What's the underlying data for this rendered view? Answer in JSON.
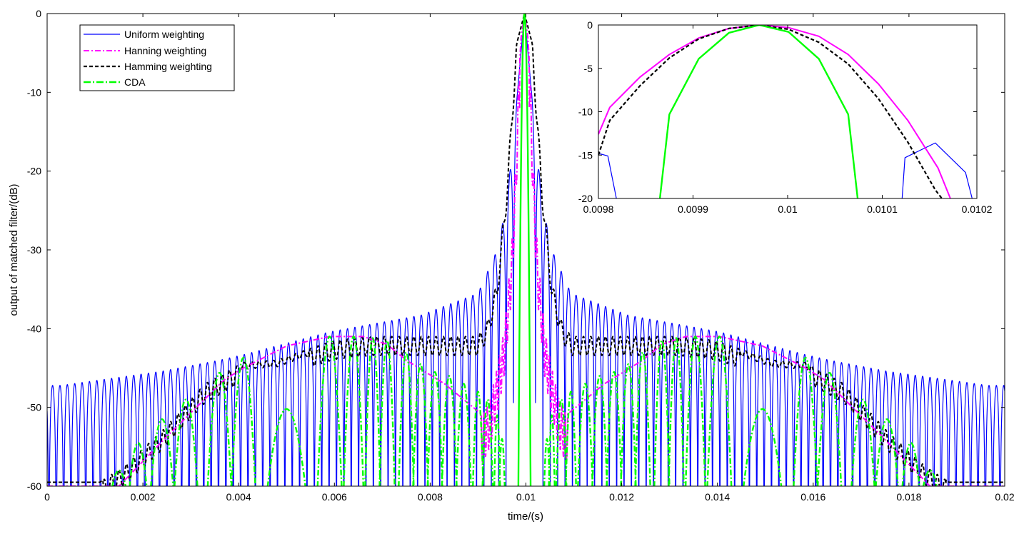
{
  "chart_data": [
    {
      "type": "line",
      "title": "",
      "xlabel": "time/(s)",
      "ylabel": "output of matched filter/(dB)",
      "xlim": [
        0,
        0.02
      ],
      "ylim": [
        -60,
        0
      ],
      "x_ticks": [
        0,
        0.002,
        0.004,
        0.006,
        0.008,
        0.01,
        0.012,
        0.014,
        0.016,
        0.018,
        0.02
      ],
      "x_tick_labels": [
        "0",
        "0.002",
        "0.004",
        "0.006",
        "0.008",
        "0.01",
        "0.012",
        "0.014",
        "0.016",
        "0.018",
        "0.02"
      ],
      "y_ticks": [
        -60,
        -50,
        -40,
        -30,
        -20,
        -10,
        0
      ],
      "y_tick_labels": [
        "-60",
        "-50",
        "-40",
        "-30",
        "-20",
        "-10",
        "0"
      ],
      "grid": false,
      "legend_position": "top-left",
      "center_s": 0.00997,
      "series": [
        {
          "name": "Uniform weighting",
          "color": "#0000ff",
          "style": "solid",
          "model": "sinc_sidelobe_envelope",
          "envelope_dB": [
            [
              0.0003,
              -47.2
            ],
            [
              0.0024,
              -45.4
            ],
            [
              0.0036,
              -44.0
            ],
            [
              0.0041,
              -43.3
            ],
            [
              0.0059,
              -40.4
            ],
            [
              0.0078,
              -38.3
            ],
            [
              0.009,
              -35.5
            ],
            [
              0.0094,
              -30.0
            ],
            [
              0.0096,
              -24.0
            ],
            [
              0.00975,
              -15.0
            ],
            [
              0.00997,
              0
            ]
          ],
          "sidelobe_spacing_s": 0.000154,
          "null_floor_dB": -60
        },
        {
          "name": "Hanning  weighting",
          "color": "#ff00ff",
          "style": "dash-dot",
          "points": [
            [
              0.0015,
              -60
            ],
            [
              0.0025,
              -53.7
            ],
            [
              0.0037,
              -46.5
            ],
            [
              0.0041,
              -45.0
            ],
            [
              0.005,
              -42.2
            ],
            [
              0.0059,
              -41.0
            ],
            [
              0.0066,
              -41.0
            ],
            [
              0.0071,
              -42.0
            ],
            [
              0.0075,
              -44.0
            ],
            [
              0.0083,
              -47.0
            ],
            [
              0.0087,
              -49.0
            ],
            [
              0.0091,
              -51.0
            ],
            [
              0.00925,
              -49.0
            ],
            [
              0.0094,
              -45.0
            ],
            [
              0.00955,
              -40.0
            ],
            [
              0.0097,
              -30.0
            ],
            [
              0.00978,
              -20.0
            ],
            [
              0.00985,
              -8.0
            ],
            [
              0.0099,
              -3.0
            ],
            [
              0.00997,
              0
            ]
          ],
          "center_ripple_dB": 6,
          "ripple_spacing_s": 6.5e-05
        },
        {
          "name": "Hamming  weighting",
          "color": "#000000",
          "style": "dashed",
          "points": [
            [
              0.0011,
              -59.5
            ],
            [
              0.0016,
              -57.5
            ],
            [
              0.0024,
              -53.0
            ],
            [
              0.0033,
              -47.0
            ],
            [
              0.0041,
              -44.3
            ],
            [
              0.0048,
              -44.0
            ],
            [
              0.0055,
              -42.5
            ],
            [
              0.006,
              -41.5
            ],
            [
              0.0068,
              -41.0
            ],
            [
              0.0076,
              -41.0
            ],
            [
              0.0083,
              -41.0
            ],
            [
              0.0088,
              -41.0
            ],
            [
              0.009,
              -41.0
            ],
            [
              0.0092,
              -39.0
            ],
            [
              0.0094,
              -34.0
            ],
            [
              0.0096,
              -22.0
            ],
            [
              0.0098,
              -4.0
            ],
            [
              0.00997,
              0
            ]
          ],
          "ripple_dB": 4,
          "ripple_spacing_s": 0.000154
        },
        {
          "name": "CDA",
          "color": "#00ff00",
          "style": "dash-dot",
          "model": "lobe_peaks",
          "lobe_peaks": [
            [
              0.0015,
              -58.0
            ],
            [
              0.0019,
              -54.5
            ],
            [
              0.0024,
              -51.5
            ],
            [
              0.0029,
              -49.0
            ],
            [
              0.0036,
              -45.6
            ],
            [
              0.0041,
              -43.7
            ],
            [
              0.005,
              -50.2
            ],
            [
              0.0059,
              -41.0
            ],
            [
              0.0064,
              -41.0
            ],
            [
              0.0068,
              -41.2
            ],
            [
              0.0071,
              -41.5
            ],
            [
              0.0075,
              -43.0
            ],
            [
              0.0078,
              -44.5
            ],
            [
              0.0081,
              -45.5
            ],
            [
              0.0084,
              -46.0
            ],
            [
              0.0087,
              -47.0
            ],
            [
              0.009,
              -48.0
            ],
            [
              0.0092,
              -49.0
            ],
            [
              0.0094,
              -51.0
            ],
            [
              0.0095,
              -54.0
            ]
          ],
          "null_floor_dB": -60
        }
      ],
      "legend": [
        "Uniform weighting",
        "Hanning  weighting",
        "Hamming  weighting",
        "CDA"
      ]
    },
    {
      "type": "line",
      "title": "",
      "xlabel": "",
      "ylabel": "",
      "xlim": [
        0.0098,
        0.0102
      ],
      "ylim": [
        -20,
        0
      ],
      "x_ticks": [
        0.0098,
        0.0099,
        0.01,
        0.0101,
        0.0102
      ],
      "x_tick_labels": [
        "0.0098",
        "0.0099",
        "0.01",
        "0.0101",
        "0.0102"
      ],
      "y_ticks": [
        -20,
        -15,
        -10,
        -5,
        0
      ],
      "y_tick_labels": [
        "-20",
        "-15",
        "-10",
        "-5",
        "0"
      ],
      "grid": false,
      "series": [
        {
          "name": "Uniform weighting",
          "color": "#0000ff",
          "style": "solid",
          "segments": [
            [
              [
                0.0098,
                -14.8
              ],
              [
                0.00981,
                -15.1
              ],
              [
                0.009819,
                -20
              ]
            ],
            [
              [
                0.010121,
                -20
              ],
              [
                0.010124,
                -15.3
              ],
              [
                0.010156,
                -13.6
              ],
              [
                0.010188,
                -17.0
              ],
              [
                0.010195,
                -20
              ]
            ]
          ]
        },
        {
          "name": "Hanning  weighting",
          "color": "#ff00ff",
          "style": "solid",
          "points": [
            [
              0.0098,
              -12.6
            ],
            [
              0.009812,
              -9.5
            ],
            [
              0.009844,
              -6.0
            ],
            [
              0.009875,
              -3.4
            ],
            [
              0.009906,
              -1.5
            ],
            [
              0.009938,
              -0.4
            ],
            [
              0.00997,
              0
            ],
            [
              0.010001,
              -0.3
            ],
            [
              0.010033,
              -1.3
            ],
            [
              0.010064,
              -3.4
            ],
            [
              0.010096,
              -6.8
            ],
            [
              0.010127,
              -11.0
            ],
            [
              0.010159,
              -16.5
            ],
            [
              0.010172,
              -20
            ]
          ]
        },
        {
          "name": "Hamming  weighting",
          "color": "#000000",
          "style": "dashed",
          "points": [
            [
              0.0098,
              -15.0
            ],
            [
              0.009812,
              -11.0
            ],
            [
              0.009844,
              -7.0
            ],
            [
              0.009875,
              -3.8
            ],
            [
              0.009906,
              -1.6
            ],
            [
              0.009938,
              -0.4
            ],
            [
              0.00997,
              0
            ],
            [
              0.010001,
              -0.5
            ],
            [
              0.010033,
              -2.0
            ],
            [
              0.010064,
              -4.5
            ],
            [
              0.010096,
              -8.5
            ],
            [
              0.010127,
              -13.5
            ],
            [
              0.010156,
              -19.0
            ],
            [
              0.010163,
              -20
            ]
          ]
        },
        {
          "name": "CDA",
          "color": "#00ff00",
          "style": "solid",
          "points": [
            [
              0.009865,
              -20
            ],
            [
              0.009875,
              -10.3
            ],
            [
              0.009906,
              -3.9
            ],
            [
              0.009938,
              -0.9
            ],
            [
              0.00997,
              0
            ],
            [
              0.010001,
              -0.8
            ],
            [
              0.010033,
              -3.9
            ],
            [
              0.010064,
              -10.3
            ],
            [
              0.010074,
              -20
            ]
          ]
        }
      ]
    }
  ]
}
